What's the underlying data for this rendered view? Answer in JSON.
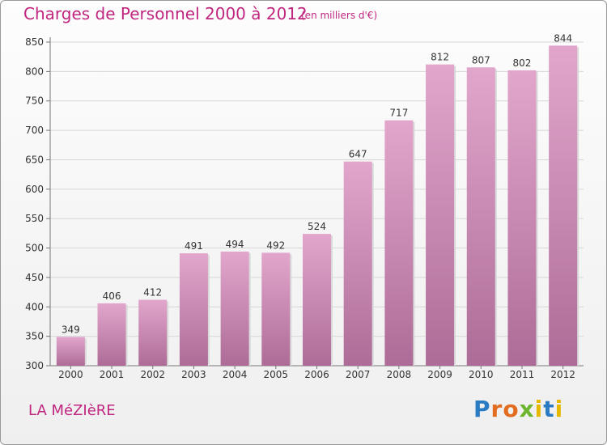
{
  "header": {
    "title": "Charges de Personnel 2000 à 2012",
    "subtitle": "(en milliers d'€)"
  },
  "footer": {
    "commune": "LA MéZIèRE",
    "logo": "Proxiti"
  },
  "colors": {
    "bar_top": "#e2a6cc",
    "bar_bottom": "#ad6c97",
    "text_accent": "#c0267f",
    "logo": [
      "#2a7bc4",
      "#e26c1f",
      "#6db42f",
      "#e6b800"
    ]
  },
  "chart_data": {
    "type": "bar",
    "title": "Charges de Personnel 2000 à 2012",
    "subtitle": "(en milliers d'€)",
    "categories": [
      "2000",
      "2001",
      "2002",
      "2003",
      "2004",
      "2005",
      "2006",
      "2007",
      "2008",
      "2009",
      "2010",
      "2011",
      "2012"
    ],
    "values": [
      349,
      406,
      412,
      491,
      494,
      492,
      524,
      647,
      717,
      812,
      807,
      802,
      844
    ],
    "ylim": [
      300,
      850
    ],
    "yticks": [
      300,
      350,
      400,
      450,
      500,
      550,
      600,
      650,
      700,
      750,
      800,
      850
    ],
    "grid": true,
    "data_labels": true
  }
}
